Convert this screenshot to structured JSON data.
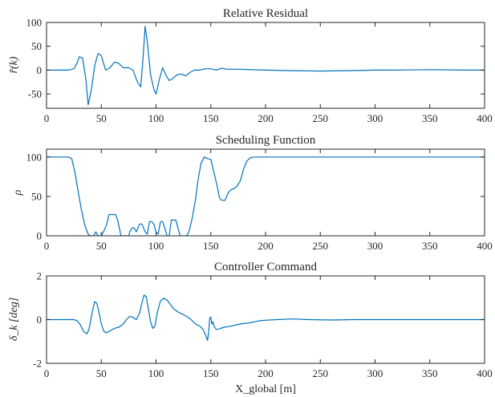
{
  "chart_data": [
    {
      "type": "line",
      "title": "Relative Residual",
      "ylabel": "r̂(k)",
      "xlim": [
        0,
        400
      ],
      "ylim": [
        -80,
        100
      ],
      "xticks": [
        0,
        50,
        100,
        150,
        200,
        250,
        300,
        350,
        400
      ],
      "yticks": [
        -50,
        0,
        50,
        100
      ],
      "color": "#0072BD",
      "series": [
        {
          "x": [
            0,
            20,
            25,
            28,
            30,
            33,
            36,
            38,
            41,
            44,
            47,
            50,
            54,
            58,
            62,
            66,
            70,
            75,
            79,
            83,
            86,
            88,
            90,
            92,
            95,
            98,
            100,
            103,
            106,
            109,
            112,
            115,
            119,
            123,
            127,
            131,
            135,
            140,
            145,
            150,
            155,
            160,
            165,
            175,
            200,
            220,
            250,
            280,
            300,
            320,
            350,
            380,
            400
          ],
          "y": [
            0,
            0,
            3,
            15,
            28,
            25,
            -20,
            -73,
            -40,
            10,
            35,
            30,
            0,
            5,
            17,
            14,
            5,
            5,
            0,
            -25,
            -35,
            20,
            92,
            60,
            -10,
            -40,
            -50,
            -20,
            5,
            -10,
            -22,
            -18,
            -10,
            -8,
            -12,
            -5,
            0,
            0,
            3,
            3,
            0,
            4,
            2,
            2,
            0,
            -1,
            -2,
            -1,
            0,
            0,
            1,
            0,
            0
          ]
        }
      ]
    },
    {
      "type": "line",
      "title": "Scheduling Function",
      "ylabel": "ρ",
      "xlim": [
        0,
        400
      ],
      "ylim": [
        0,
        110
      ],
      "xticks": [
        0,
        50,
        100,
        150,
        200,
        250,
        300,
        350,
        400
      ],
      "yticks": [
        0,
        50,
        100
      ],
      "color": "#0072BD",
      "series": [
        {
          "x": [
            0,
            20,
            23,
            26,
            29,
            32,
            35,
            38,
            40,
            43,
            45,
            47,
            50,
            52,
            55,
            57,
            58,
            63,
            65,
            68,
            70,
            72,
            75,
            76,
            78,
            80,
            82,
            85,
            87,
            88,
            90,
            92,
            94,
            96,
            98,
            100,
            102,
            104,
            106,
            108,
            110,
            112,
            114,
            118,
            120,
            122,
            124,
            126,
            128,
            130,
            133,
            136,
            138,
            141,
            144,
            147,
            150,
            153,
            156,
            158,
            160,
            163,
            166,
            168,
            171,
            174,
            177,
            180,
            183,
            186,
            190,
            195,
            200,
            220,
            250,
            300,
            350,
            400
          ],
          "y": [
            100,
            100,
            98,
            80,
            55,
            32,
            13,
            2,
            0,
            0,
            5,
            0,
            0,
            5,
            15,
            27,
            27,
            27,
            20,
            0,
            0,
            0,
            0,
            5,
            10,
            10,
            5,
            15,
            15,
            12,
            5,
            2,
            18,
            18,
            15,
            5,
            2,
            18,
            18,
            10,
            0,
            0,
            20,
            20,
            10,
            0,
            0,
            0,
            0,
            5,
            22,
            45,
            68,
            92,
            100,
            98,
            97,
            80,
            62,
            48,
            45,
            45,
            55,
            58,
            60,
            63,
            70,
            85,
            95,
            99,
            100,
            100,
            100,
            100,
            100,
            100,
            100,
            100
          ]
        }
      ]
    },
    {
      "type": "line",
      "title": "Controller Command",
      "ylabel": "δ_k [deg]",
      "xlabel": "X_global [m]",
      "xlim": [
        0,
        400
      ],
      "ylim": [
        -2,
        2
      ],
      "xticks": [
        0,
        50,
        100,
        150,
        200,
        250,
        300,
        350,
        400
      ],
      "yticks": [
        -2,
        0,
        2
      ],
      "color": "#0072BD",
      "series": [
        {
          "x": [
            0,
            25,
            28,
            31,
            34,
            37,
            39,
            42,
            44,
            46,
            48,
            50,
            52,
            54,
            57,
            60,
            63,
            66,
            70,
            73,
            76,
            79,
            82,
            85,
            87,
            89,
            91,
            93,
            95,
            97,
            99,
            101,
            104,
            107,
            110,
            113,
            116,
            120,
            124,
            128,
            132,
            136,
            140,
            143,
            146,
            147,
            148,
            149,
            150,
            151,
            152,
            153,
            155,
            158,
            162,
            166,
            170,
            175,
            180,
            185,
            190,
            195,
            200,
            210,
            225,
            240,
            260,
            280,
            300,
            320,
            350,
            380,
            400
          ],
          "y": [
            0,
            0,
            -0.05,
            -0.25,
            -0.55,
            -0.65,
            -0.4,
            0.4,
            0.82,
            0.75,
            0.3,
            -0.2,
            -0.5,
            -0.6,
            -0.55,
            -0.45,
            -0.38,
            -0.35,
            -0.2,
            0,
            0.15,
            0.1,
            0,
            0.3,
            0.75,
            1.12,
            1.05,
            0.5,
            -0.1,
            -0.4,
            -0.3,
            0.3,
            0.85,
            0.98,
            0.9,
            0.7,
            0.5,
            0.35,
            0.25,
            0.15,
            0,
            -0.2,
            -0.3,
            -0.45,
            -0.8,
            -0.95,
            -0.6,
            0.05,
            0.12,
            -0.2,
            -0.1,
            -0.3,
            -0.45,
            -0.42,
            -0.35,
            -0.32,
            -0.28,
            -0.22,
            -0.18,
            -0.15,
            -0.1,
            -0.05,
            -0.03,
            0,
            0.03,
            0,
            -0.02,
            0,
            0,
            0,
            0,
            0,
            0
          ]
        }
      ]
    }
  ]
}
